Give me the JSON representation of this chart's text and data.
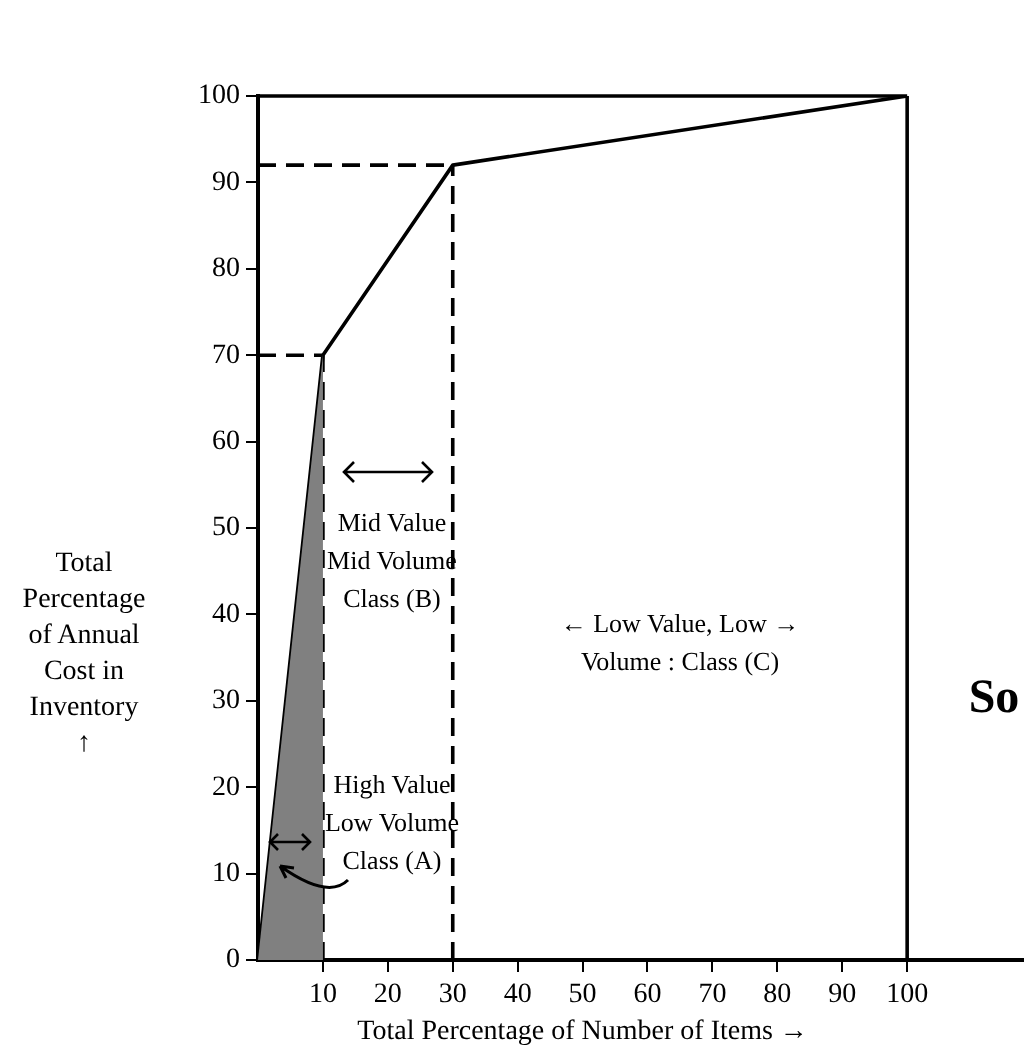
{
  "chart_data": {
    "type": "line",
    "xlabel": "Total Percentage of Number of Items →",
    "ylabel": "Total\nPercentage\nof Annual\nCost in\nInventory\n↑",
    "series": [
      {
        "type": "area",
        "color": "#808080",
        "x": [
          0,
          10
        ],
        "values": [
          0,
          70
        ]
      },
      {
        "color": "#000000",
        "x": [
          0,
          10,
          30,
          100
        ],
        "values": [
          0,
          70,
          92,
          100
        ]
      }
    ],
    "xlim": [
      0,
      118
    ],
    "xticks": [
      10,
      20,
      30,
      40,
      50,
      60,
      70,
      80,
      90,
      100
    ],
    "ylim": [
      0,
      100
    ],
    "yticks": [
      0,
      10,
      20,
      30,
      40,
      50,
      60,
      70,
      80,
      90,
      100
    ],
    "ref_lines": [
      {
        "axis": "x",
        "value": 10,
        "line_style": "dashed"
      },
      {
        "axis": "y",
        "value": 70,
        "line_style": "dashed"
      },
      {
        "axis": "x",
        "value": 30,
        "line_style": "dashed"
      },
      {
        "axis": "y",
        "value": 92,
        "line_style": "dashed"
      },
      {
        "axis": "x",
        "value": 100,
        "line_style": "solid"
      },
      {
        "axis": "y",
        "value": 100,
        "line_style": "solid"
      }
    ],
    "annotations": [
      "Mid Value\nMid Volume\nClass (B)",
      "← Low Value, Low →\nVolume : Class (C)",
      "High Value\nLow Volume\nClass (A)",
      "So"
    ],
    "grid": false,
    "legend": false,
    "marker": "none",
    "line_style": "solid"
  }
}
